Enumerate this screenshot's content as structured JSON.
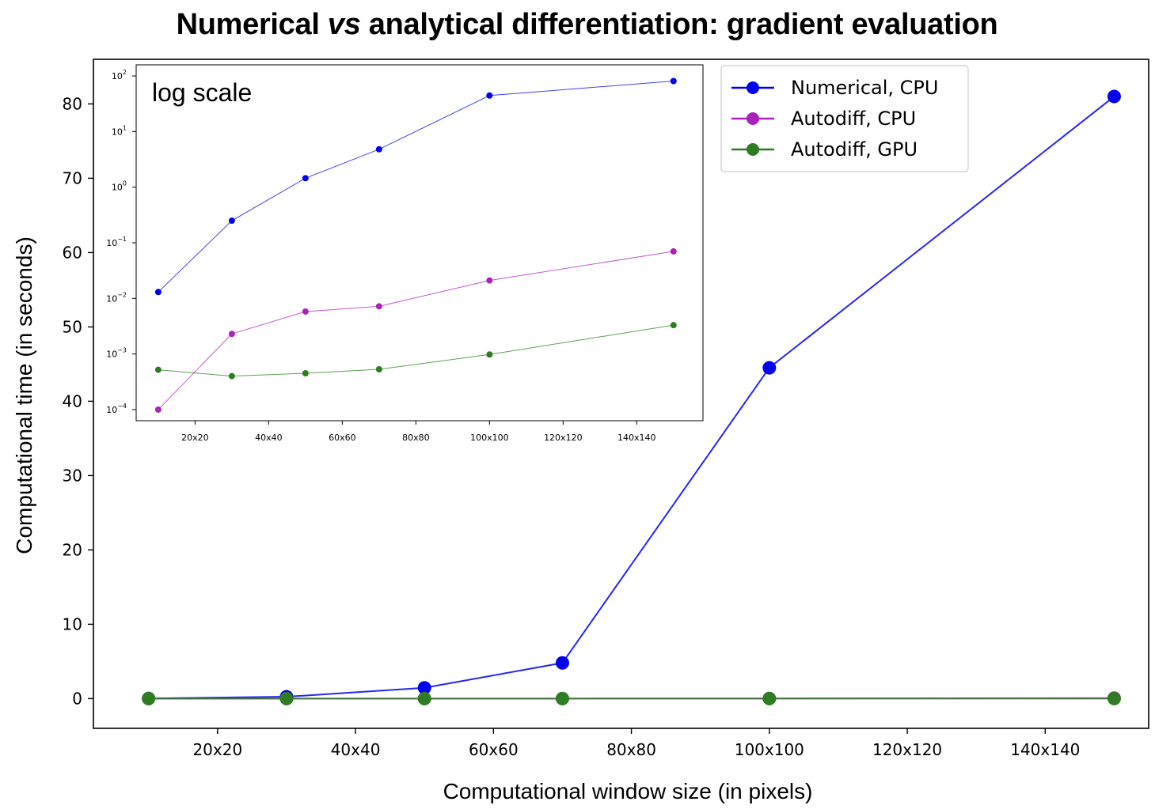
{
  "title": {
    "before": "Numerical ",
    "italic": "vs",
    "after": " analytical differentiation: gradient evaluation"
  },
  "chart_data": [
    {
      "type": "line",
      "title": "Numerical vs analytical differentiation: gradient evaluation",
      "xlabel": "Computational window size (in pixels)",
      "ylabel": "Computational time (in seconds)",
      "x": [
        10,
        30,
        50,
        70,
        100,
        150
      ],
      "xlim": [
        2,
        155
      ],
      "ylim": [
        -4,
        86
      ],
      "xticks": [
        20,
        40,
        60,
        80,
        100,
        120,
        140
      ],
      "xtick_labels": [
        "20x20",
        "40x40",
        "60x60",
        "80x80",
        "100x100",
        "120x120",
        "140x140"
      ],
      "yticks": [
        0,
        10,
        20,
        30,
        40,
        50,
        60,
        70,
        80
      ],
      "ytick_labels": [
        "0",
        "10",
        "20",
        "30",
        "40",
        "50",
        "60",
        "70",
        "80"
      ],
      "legend_position": "top-right",
      "grid": false,
      "series": [
        {
          "name": "Numerical, CPU",
          "color": "#0000ee",
          "values": [
            0.013,
            0.25,
            1.45,
            4.8,
            44.5,
            81
          ]
        },
        {
          "name": "Autodiff, CPU",
          "color": "#aa22bb",
          "values": [
            0.0001,
            0.0023,
            0.0058,
            0.0072,
            0.021,
            0.07
          ]
        },
        {
          "name": "Autodiff, GPU",
          "color": "#2e7d22",
          "values": [
            0.00052,
            0.0004,
            0.00045,
            0.00053,
            0.00098,
            0.0033
          ]
        }
      ]
    },
    {
      "type": "line",
      "title": "log scale",
      "yscale": "log",
      "x": [
        10,
        30,
        50,
        70,
        100,
        150
      ],
      "xlim": [
        4,
        158
      ],
      "ylim_log10": [
        -4.2,
        2.2
      ],
      "xticks": [
        20,
        40,
        60,
        80,
        100,
        120,
        140
      ],
      "xtick_labels": [
        "20x20",
        "40x40",
        "60x60",
        "80x80",
        "100x100",
        "120x120",
        "140x140"
      ],
      "yticks_exp": [
        -4,
        -3,
        -2,
        -1,
        0,
        1,
        2
      ],
      "series": [
        {
          "name": "Numerical, CPU",
          "color": "#0000ee",
          "values": [
            0.013,
            0.25,
            1.45,
            4.8,
            44.5,
            81
          ]
        },
        {
          "name": "Autodiff, CPU",
          "color": "#aa22bb",
          "values": [
            0.0001,
            0.0023,
            0.0058,
            0.0072,
            0.021,
            0.07
          ]
        },
        {
          "name": "Autodiff, GPU",
          "color": "#2e7d22",
          "values": [
            0.00052,
            0.0004,
            0.00045,
            0.00053,
            0.00098,
            0.0033
          ]
        }
      ]
    }
  ]
}
